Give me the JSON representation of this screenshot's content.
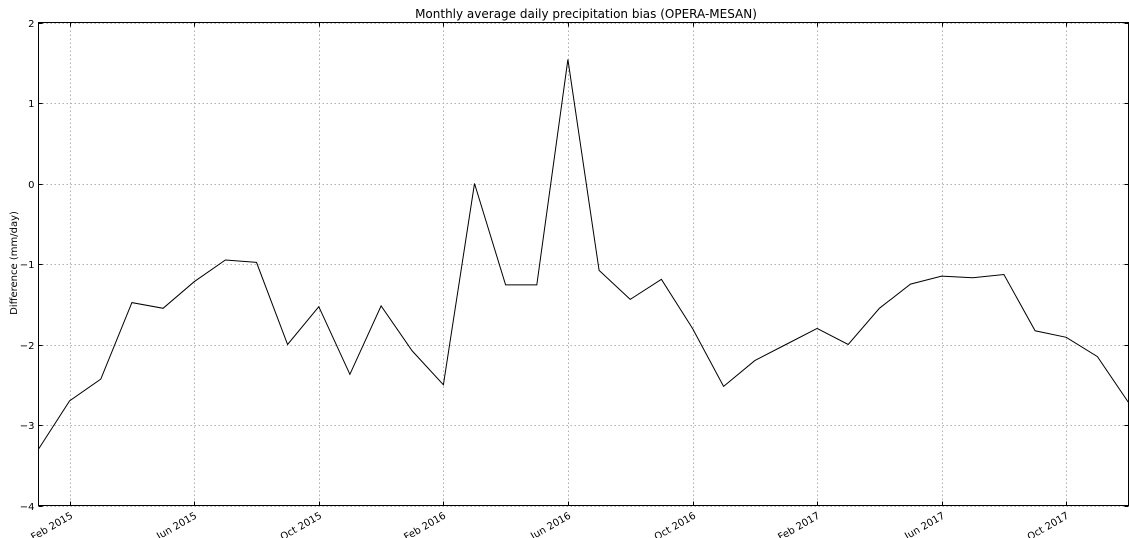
{
  "chart_data": {
    "type": "line",
    "title": "Monthly average daily precipitation bias (OPERA-MESAN)",
    "xlabel": "",
    "ylabel": "Difference (mm/day)",
    "ylim": [
      -4,
      2
    ],
    "xlim": [
      "2015-01",
      "2017-12"
    ],
    "grid": true,
    "x_ticks": [
      {
        "date": "2015-02",
        "label": "Feb 2015"
      },
      {
        "date": "2015-06",
        "label": "Jun 2015"
      },
      {
        "date": "2015-10",
        "label": "Oct 2015"
      },
      {
        "date": "2016-02",
        "label": "Feb 2016"
      },
      {
        "date": "2016-06",
        "label": "Jun 2016"
      },
      {
        "date": "2016-10",
        "label": "Oct 2016"
      },
      {
        "date": "2017-02",
        "label": "Feb 2017"
      },
      {
        "date": "2017-06",
        "label": "Jun 2017"
      },
      {
        "date": "2017-10",
        "label": "Oct 2017"
      }
    ],
    "y_ticks": [
      {
        "value": 2,
        "label": "2"
      },
      {
        "value": 1,
        "label": "1"
      },
      {
        "value": 0,
        "label": "0"
      },
      {
        "value": -1,
        "label": "−1"
      },
      {
        "value": -2,
        "label": "−2"
      },
      {
        "value": -3,
        "label": "−3"
      },
      {
        "value": -4,
        "label": "−4"
      }
    ],
    "series": [
      {
        "color": "#000000",
        "points": [
          {
            "x": "2015-01",
            "y": -3.3
          },
          {
            "x": "2015-02",
            "y": -2.7
          },
          {
            "x": "2015-03",
            "y": -2.43
          },
          {
            "x": "2015-04",
            "y": -1.48
          },
          {
            "x": "2015-05",
            "y": -1.55
          },
          {
            "x": "2015-06",
            "y": -1.22
          },
          {
            "x": "2015-07",
            "y": -0.95
          },
          {
            "x": "2015-08",
            "y": -0.98
          },
          {
            "x": "2015-09",
            "y": -2.0
          },
          {
            "x": "2015-10",
            "y": -1.53
          },
          {
            "x": "2015-11",
            "y": -2.37
          },
          {
            "x": "2015-12",
            "y": -1.52
          },
          {
            "x": "2016-01",
            "y": -2.08
          },
          {
            "x": "2016-02",
            "y": -2.5
          },
          {
            "x": "2016-03",
            "y": 0.0
          },
          {
            "x": "2016-04",
            "y": -1.26
          },
          {
            "x": "2016-05",
            "y": -1.26
          },
          {
            "x": "2016-06",
            "y": 1.54
          },
          {
            "x": "2016-07",
            "y": -1.08
          },
          {
            "x": "2016-08",
            "y": -1.44
          },
          {
            "x": "2016-09",
            "y": -1.19
          },
          {
            "x": "2016-10",
            "y": -1.8
          },
          {
            "x": "2016-11",
            "y": -2.52
          },
          {
            "x": "2016-12",
            "y": -2.2
          },
          {
            "x": "2017-01",
            "y": -2.0
          },
          {
            "x": "2017-02",
            "y": -1.8
          },
          {
            "x": "2017-03",
            "y": -2.0
          },
          {
            "x": "2017-04",
            "y": -1.55
          },
          {
            "x": "2017-05",
            "y": -1.25
          },
          {
            "x": "2017-06",
            "y": -1.15
          },
          {
            "x": "2017-07",
            "y": -1.17
          },
          {
            "x": "2017-08",
            "y": -1.13
          },
          {
            "x": "2017-09",
            "y": -1.83
          },
          {
            "x": "2017-10",
            "y": -1.91
          },
          {
            "x": "2017-11",
            "y": -2.15
          },
          {
            "x": "2017-12",
            "y": -2.72
          }
        ]
      }
    ]
  }
}
